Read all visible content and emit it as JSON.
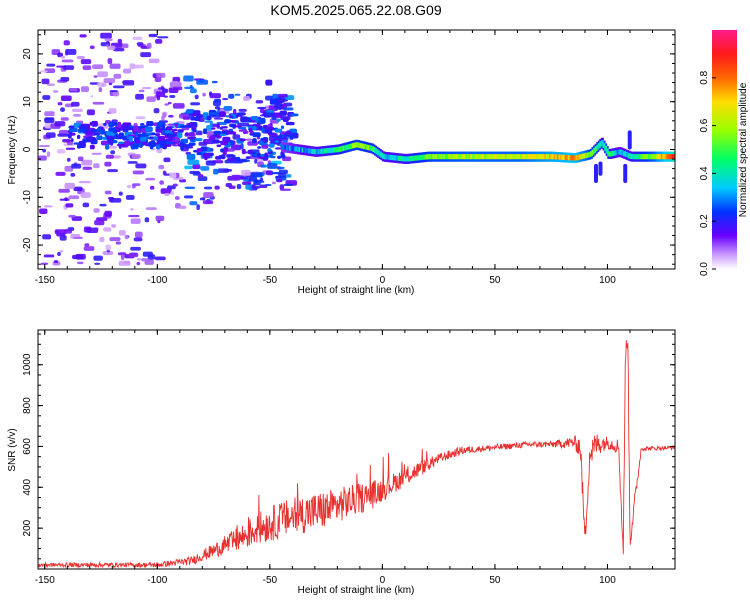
{
  "title": "KOM5.2025.065.22.08.G09",
  "colors": {
    "line": "#e8312e",
    "axis": "#000000"
  },
  "chart_data": [
    {
      "type": "heatmap",
      "xlabel": "Height of straight line (km)",
      "ylabel": "Frequency (Hz)",
      "xlim": [
        -153,
        130
      ],
      "ylim": [
        -25,
        25
      ],
      "xticks": [
        -150,
        -100,
        -50,
        0,
        50,
        100
      ],
      "yticks": [
        -20,
        -10,
        0,
        10,
        20
      ],
      "colorbar": {
        "label": "Normalized spectral amplitude",
        "range": [
          0,
          1
        ],
        "ticks": [
          "0.0",
          "0.2",
          "0.4",
          "0.6",
          "0.8"
        ],
        "tick_values": [
          0,
          0.2,
          0.4,
          0.6,
          0.8
        ],
        "colormap": "rainbow (white-violet-blue-cyan-green-yellow-orange-red-magenta)"
      },
      "ridge": {
        "description": "main spectral ridge, x in km, frequency in Hz, amplitude 0-1",
        "points": [
          {
            "x": -45,
            "f": 0.5,
            "a": 0.25
          },
          {
            "x": -30,
            "f": -0.5,
            "a": 0.35
          },
          {
            "x": -20,
            "f": 0.0,
            "a": 0.45
          },
          {
            "x": -12,
            "f": 1.0,
            "a": 0.55
          },
          {
            "x": -5,
            "f": 0.2,
            "a": 0.5
          },
          {
            "x": 0,
            "f": -1.5,
            "a": 0.35
          },
          {
            "x": 10,
            "f": -2.0,
            "a": 0.4
          },
          {
            "x": 20,
            "f": -1.5,
            "a": 0.55
          },
          {
            "x": 40,
            "f": -1.5,
            "a": 0.6
          },
          {
            "x": 60,
            "f": -1.5,
            "a": 0.6
          },
          {
            "x": 75,
            "f": -1.5,
            "a": 0.7
          },
          {
            "x": 85,
            "f": -1.8,
            "a": 0.75
          },
          {
            "x": 92,
            "f": -1.0,
            "a": 0.55
          },
          {
            "x": 97,
            "f": 1.5,
            "a": 0.4
          },
          {
            "x": 100,
            "f": -1.0,
            "a": 0.45
          },
          {
            "x": 105,
            "f": -0.5,
            "a": 0.3
          },
          {
            "x": 110,
            "f": -1.5,
            "a": 0.4
          },
          {
            "x": 120,
            "f": -1.5,
            "a": 0.6
          },
          {
            "x": 130,
            "f": -1.5,
            "a": 0.9
          }
        ]
      }
    },
    {
      "type": "line",
      "xlabel": "Height of straight line (km)",
      "ylabel": "SNR (v/v)",
      "xlim": [
        -153,
        130
      ],
      "ylim": [
        0,
        1170
      ],
      "xticks": [
        -150,
        -100,
        -50,
        0,
        50,
        100
      ],
      "yticks": [
        200,
        400,
        600,
        800,
        1000
      ],
      "series": [
        {
          "color": "#e8312e",
          "description": "mean SNR trend with high-frequency noise",
          "x": [
            -153,
            -100,
            -85,
            -75,
            -65,
            -55,
            -45,
            -35,
            -25,
            -15,
            -5,
            5,
            15,
            25,
            35,
            45,
            55,
            65,
            75,
            85,
            88,
            90,
            92,
            95,
            100,
            105,
            107,
            108,
            109,
            110,
            115,
            120,
            130
          ],
          "y": [
            20,
            20,
            40,
            90,
            140,
            200,
            240,
            270,
            290,
            330,
            360,
            420,
            480,
            540,
            580,
            590,
            600,
            610,
            610,
            620,
            600,
            140,
            560,
            610,
            620,
            600,
            80,
            1050,
            1160,
            140,
            590,
            590,
            595
          ],
          "noise_amplitude": [
            10,
            12,
            20,
            35,
            60,
            80,
            90,
            95,
            95,
            80,
            70,
            50,
            40,
            25,
            20,
            15,
            15,
            15,
            15,
            30,
            60,
            60,
            80,
            60,
            30,
            40,
            60,
            60,
            60,
            60,
            10,
            10,
            10
          ]
        }
      ]
    }
  ]
}
